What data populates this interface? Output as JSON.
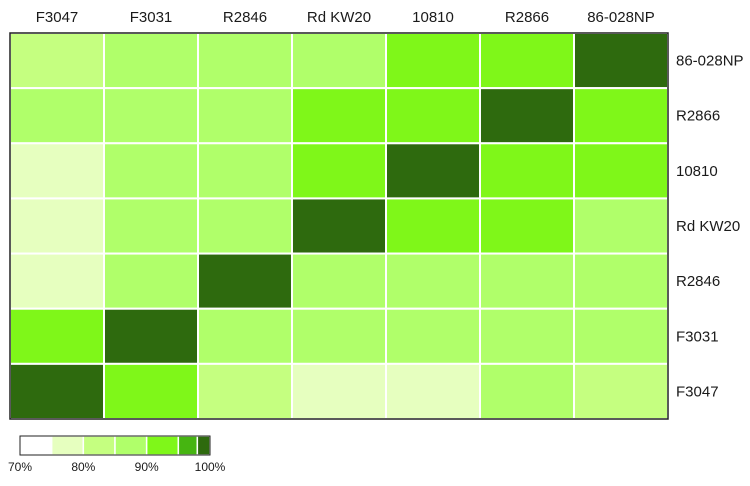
{
  "chart_data": {
    "type": "heatmap",
    "columns": [
      "F3047",
      "F3031",
      "R2846",
      "Rd KW20",
      "10810",
      "R2866",
      "86-028NP"
    ],
    "rows": [
      "86-028NP",
      "R2866",
      "10810",
      "Rd KW20",
      "R2846",
      "F3031",
      "F3047"
    ],
    "values": [
      [
        82,
        86,
        86,
        86,
        94,
        94,
        100
      ],
      [
        86,
        86,
        86,
        94,
        94,
        100,
        94
      ],
      [
        78,
        86,
        86,
        94,
        100,
        94,
        94
      ],
      [
        78,
        86,
        86,
        100,
        94,
        94,
        86
      ],
      [
        78,
        86,
        100,
        86,
        86,
        86,
        86
      ],
      [
        94,
        100,
        86,
        86,
        86,
        86,
        86
      ],
      [
        100,
        94,
        80,
        78,
        78,
        86,
        80
      ]
    ],
    "value_range": [
      70,
      100
    ],
    "legend": {
      "position": "bottom-left",
      "bins": [
        {
          "from": 70,
          "to": 75,
          "color": "#ffffff"
        },
        {
          "from": 75,
          "to": 80,
          "color": "#e6ffbf"
        },
        {
          "from": 80,
          "to": 85,
          "color": "#c5ff80"
        },
        {
          "from": 85,
          "to": 90,
          "color": "#b0ff6a"
        },
        {
          "from": 90,
          "to": 95,
          "color": "#7ff719"
        },
        {
          "from": 95,
          "to": 98,
          "color": "#46b511"
        },
        {
          "from": 98,
          "to": 100,
          "color": "#2e6a0e"
        }
      ],
      "tick_labels": [
        "70%",
        "80%",
        "90%",
        "100%"
      ],
      "tick_values": [
        70,
        80,
        90,
        100
      ]
    },
    "colors": {
      "grid_line": "#ffffff",
      "frame": "#222222"
    }
  }
}
